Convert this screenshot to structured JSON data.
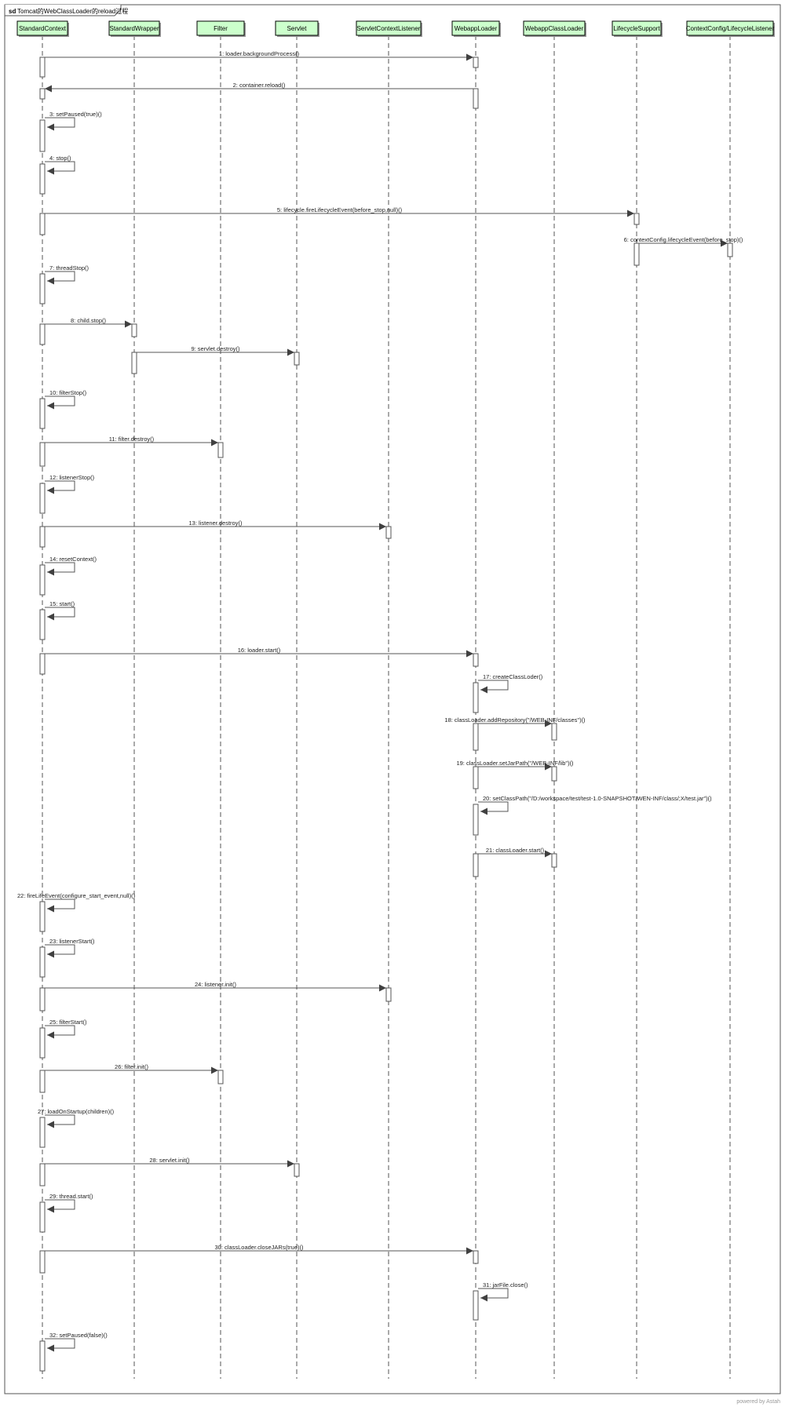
{
  "frame": {
    "keyword": "sd",
    "title": "Tomcat的WebClassLoader的reload过程"
  },
  "participants": [
    {
      "name": "StandardContext"
    },
    {
      "name": "StandardWrapper"
    },
    {
      "name": "Filter"
    },
    {
      "name": "Servlet"
    },
    {
      "name": "ServletContextListener"
    },
    {
      "name": "WebappLoader"
    },
    {
      "name": "WebappClassLoader"
    },
    {
      "name": "LifecycleSupport"
    },
    {
      "name": "ContextConfig/LifecycleListener"
    }
  ],
  "messages": [
    {
      "from": 0,
      "to": 5,
      "label": "1: loader.backgroundProcess()"
    },
    {
      "from": 5,
      "to": 0,
      "label": "2: container.reload()"
    },
    {
      "from": 0,
      "to": 0,
      "label": "3: setPaused(true)()"
    },
    {
      "from": 0,
      "to": 0,
      "label": "4: stop()"
    },
    {
      "from": 0,
      "to": 7,
      "label": "5: lifecycle.fireLifecycleEvent(before_stop,null)()"
    },
    {
      "from": 7,
      "to": 8,
      "label": "6: contextConfig.lifecycleEvent(before_stop)()"
    },
    {
      "from": 0,
      "to": 0,
      "label": "7: threadStop()"
    },
    {
      "from": 0,
      "to": 1,
      "label": "8: child.stop()"
    },
    {
      "from": 1,
      "to": 3,
      "label": "9: servlet.destroy()"
    },
    {
      "from": 0,
      "to": 0,
      "label": "10: filterStop()"
    },
    {
      "from": 0,
      "to": 2,
      "label": "11: filter.destroy()"
    },
    {
      "from": 0,
      "to": 0,
      "label": "12: listenerStop()"
    },
    {
      "from": 0,
      "to": 4,
      "label": "13: listener.destroy()"
    },
    {
      "from": 0,
      "to": 0,
      "label": "14: resetContext()"
    },
    {
      "from": 0,
      "to": 0,
      "label": "15: start()"
    },
    {
      "from": 0,
      "to": 5,
      "label": "16: loader.start()"
    },
    {
      "from": 5,
      "to": 5,
      "label": "17: createClassLoder()"
    },
    {
      "from": 5,
      "to": 6,
      "label": "18: classLoader.addRepository(\"/WEB-INF/classes\")()"
    },
    {
      "from": 5,
      "to": 6,
      "label": "19: classLoader.setJarPath(\"/WEB-INF/lib\")()"
    },
    {
      "from": 5,
      "to": 5,
      "label": "20: setClassPath(\"/D:/workspace/test/test-1.0-SNAPSHOT/WEN-INF/class/;X/test.jar\")()"
    },
    {
      "from": 5,
      "to": 6,
      "label": "21: classLoader.start()"
    },
    {
      "from": 0,
      "to": 0,
      "label": "22: fireLifeEvent(configure_start_event,null)()"
    },
    {
      "from": 0,
      "to": 0,
      "label": "23: listenerStart()"
    },
    {
      "from": 0,
      "to": 4,
      "label": "24: listener.init()"
    },
    {
      "from": 0,
      "to": 0,
      "label": "25: filterStart()"
    },
    {
      "from": 0,
      "to": 2,
      "label": "26: filter.init()"
    },
    {
      "from": 0,
      "to": 0,
      "label": "27: loadOnStartup(children)()"
    },
    {
      "from": 0,
      "to": 3,
      "label": "28: servlet.init()"
    },
    {
      "from": 0,
      "to": 0,
      "label": "29: thread.start()"
    },
    {
      "from": 0,
      "to": 5,
      "label": "30: classLoader.closeJARs(true)()"
    },
    {
      "from": 5,
      "to": 5,
      "label": "31: jarFile.close()"
    },
    {
      "from": 0,
      "to": 0,
      "label": "32: setPaused(false)()"
    }
  ],
  "footer": {
    "text": "powered by Astah"
  },
  "colors": {
    "participant_fill": "#ccffcc",
    "line": "#555555",
    "arrow_head": "#404040"
  }
}
